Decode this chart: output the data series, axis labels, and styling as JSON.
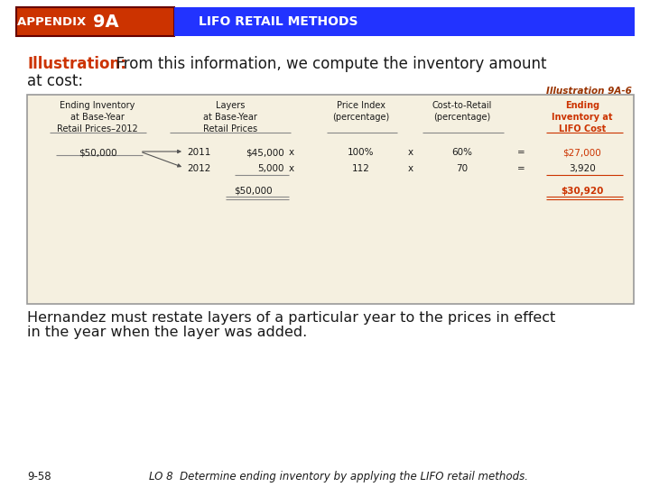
{
  "title_box1_text": "APPENDIX 9A",
  "title_box2_text": "LIFO RETAIL METHODS",
  "title_box1_bg": "#CC3300",
  "title_box2_bg": "#2233FF",
  "title_text_color": "#FFFFFF",
  "illustration_label": "Illustration 9A-6",
  "illustration_label_color": "#993300",
  "intro_bold": "Illustration:",
  "intro_rest": "  From this information, we compute the inventory amount",
  "intro_line2": "at cost:",
  "body_line1": "Hernandez must restate layers of a particular year to the prices in effect",
  "body_line2": "in the year when the layer was added.",
  "footer_left": "9-58",
  "footer_right": "LO 8  Determine ending inventory by applying the LIFO retail methods.",
  "table_bg": "#F5F0E0",
  "table_border": "#999999",
  "red_color": "#CC3300",
  "black_color": "#1A1A1A",
  "page_bg": "#FFFFFF",
  "total_layers": "$50,000",
  "total_ending": "$30,920"
}
